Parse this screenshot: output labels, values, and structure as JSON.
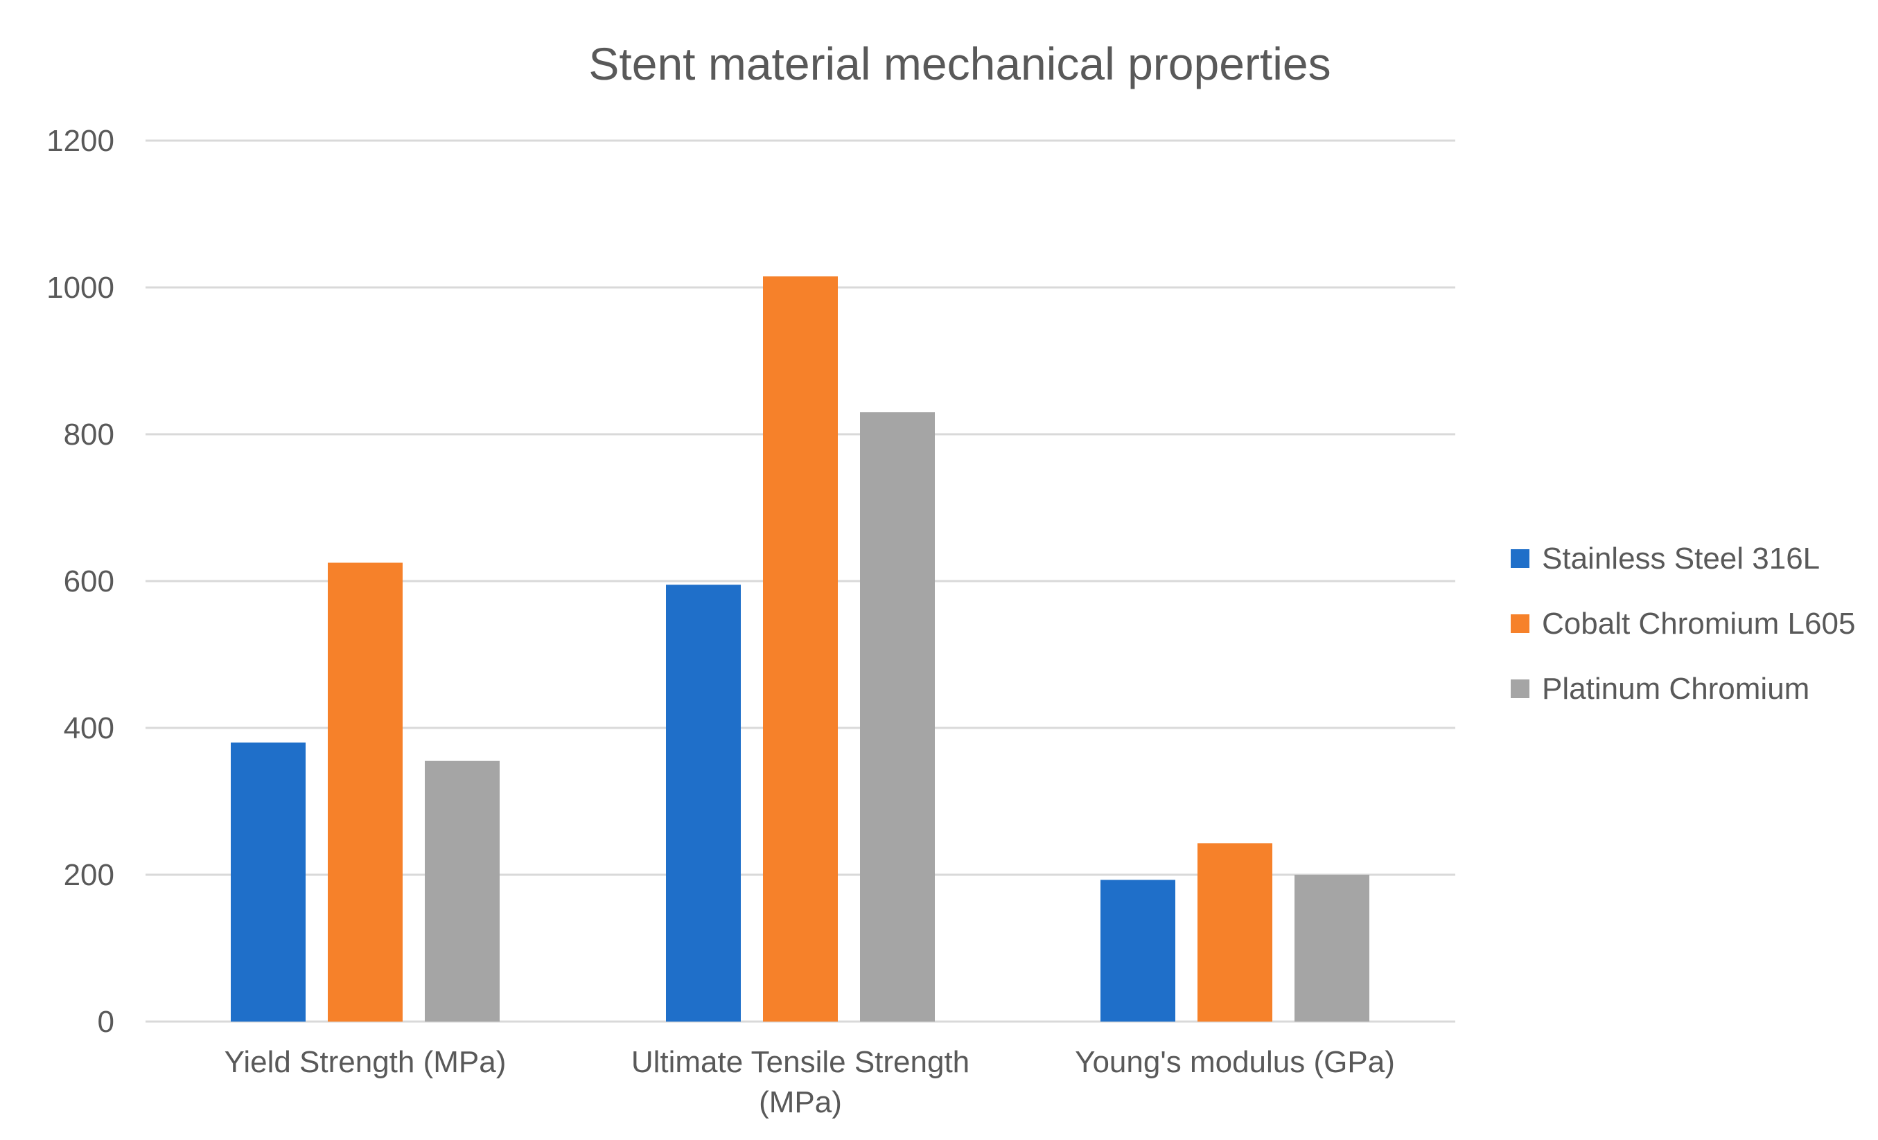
{
  "chart_data": {
    "type": "bar",
    "title": "Stent material mechanical properties",
    "xlabel": "",
    "ylabel": "",
    "ylim": [
      0,
      1200
    ],
    "yticks": [
      0,
      200,
      400,
      600,
      800,
      1000,
      1200
    ],
    "grid": true,
    "legend_position": "right",
    "categories": [
      [
        "Yield Strength (MPa)"
      ],
      [
        "Ultimate Tensile Strength",
        "(MPa)"
      ],
      [
        "Young's modulus (GPa)"
      ]
    ],
    "series": [
      {
        "name": "Stainless Steel 316L",
        "color": "#1f6fc9",
        "values": [
          380,
          595,
          193
        ]
      },
      {
        "name": "Cobalt Chromium L605",
        "color": "#f6812a",
        "values": [
          625,
          1015,
          243
        ]
      },
      {
        "name": "Platinum Chromium",
        "color": "#a5a5a5",
        "values": [
          355,
          830,
          200
        ]
      }
    ]
  }
}
